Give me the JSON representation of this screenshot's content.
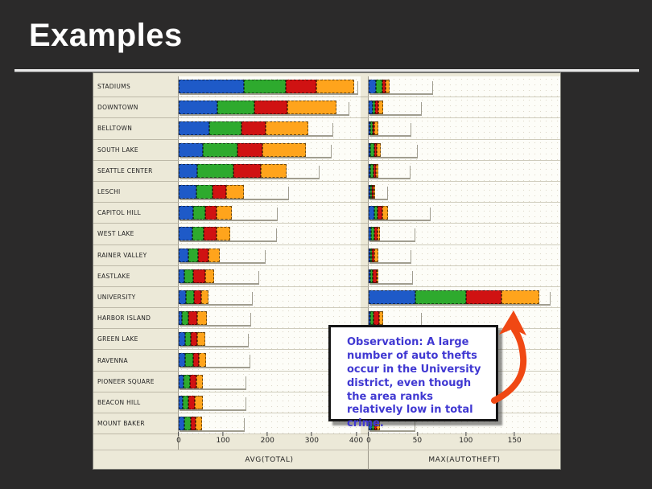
{
  "slide": {
    "title": "Examples"
  },
  "annotation": {
    "text": "Observation: A large number of auto thefts occur in the University district, even though the area ranks relatively low in total crime.",
    "text_color": "#4038d2",
    "arrow_color": "#f04813"
  },
  "colors": {
    "blue": "#1e5ac8",
    "green": "#2eaa2e",
    "red": "#d01212",
    "orange": "#ffa41c",
    "panel_bg": "#ece9d8",
    "slide_bg": "#2b2a2a"
  },
  "chart_data": [
    {
      "type": "bar",
      "orientation": "horizontal",
      "stacked": true,
      "xlabel": "AVG(TOTAL)",
      "xticks": [
        0,
        100,
        200,
        300,
        400
      ],
      "xlim": [
        0,
        410
      ],
      "grid": false,
      "legend": "none",
      "categories": [
        "STADIUMS",
        "DOWNTOWN",
        "BELLTOWN",
        "SOUTH LAKE",
        "SEATTLE CENTER",
        "LESCHI",
        "CAPITOL HILL",
        "WEST LAKE",
        "RAINER VALLEY",
        "EASTLAKE",
        "UNIVERSITY",
        "HARBOR ISLAND",
        "GREEN LAKE",
        "RAVENNA",
        "PIONEER SQUARE",
        "BEACON HILL",
        "MOUNT BAKER"
      ],
      "series": [
        {
          "name": "blue",
          "color": "#1e5ac8",
          "values": [
            150,
            93,
            81,
            66,
            54,
            66,
            60,
            57,
            45,
            29,
            42,
            20,
            39,
            39,
            29,
            27,
            33
          ]
        },
        {
          "name": "green",
          "color": "#2eaa2e",
          "values": [
            95,
            90,
            87,
            93,
            105,
            60,
            51,
            48,
            45,
            46,
            45,
            37,
            33,
            45,
            40,
            33,
            42
          ]
        },
        {
          "name": "red",
          "color": "#d01212",
          "values": [
            70,
            79,
            64,
            66,
            81,
            54,
            48,
            54,
            51,
            60,
            39,
            48,
            39,
            33,
            42,
            39,
            33
          ]
        },
        {
          "name": "orange",
          "color": "#ffa41c",
          "values": [
            88,
            120,
            114,
            118,
            76,
            66,
            63,
            60,
            54,
            45,
            39,
            57,
            45,
            42,
            39,
            51,
            39
          ]
        }
      ]
    },
    {
      "type": "bar",
      "orientation": "horizontal",
      "stacked": true,
      "xlabel": "MAX(AUTOTHEFT)",
      "xticks": [
        0,
        50,
        100,
        150
      ],
      "xlim": [
        0,
        197
      ],
      "grid": false,
      "legend": "none",
      "categories": [
        "STADIUMS",
        "DOWNTOWN",
        "BELLTOWN",
        "SOUTH LAKE",
        "SEATTLE CENTER",
        "LESCHI",
        "CAPITOL HILL",
        "WEST LAKE",
        "RAINER VALLEY",
        "EASTLAKE",
        "UNIVERSITY",
        "HARBOR ISLAND",
        "GREEN LAKE",
        "RAVENNA",
        "PIONEER SQUARE",
        "BEACON HILL",
        "MOUNT BAKER"
      ],
      "series": [
        {
          "name": "blue",
          "color": "#1e5ac8",
          "values": [
            22,
            14,
            6,
            6,
            4,
            3,
            17,
            10,
            6,
            8,
            51,
            7,
            8,
            8,
            7,
            6,
            14
          ]
        },
        {
          "name": "green",
          "color": "#2eaa2e",
          "values": [
            21,
            10,
            12,
            16,
            14,
            4,
            11,
            14,
            8,
            9,
            55,
            11,
            10,
            10,
            9,
            9,
            11
          ]
        },
        {
          "name": "red",
          "color": "#d01212",
          "values": [
            10,
            11,
            6,
            11,
            13,
            2,
            17,
            15,
            12,
            19,
            39,
            22,
            12,
            11,
            11,
            10,
            10
          ]
        },
        {
          "name": "orange",
          "color": "#ffa41c",
          "values": [
            12,
            19,
            19,
            17,
            11,
            10,
            18,
            8,
            17,
            9,
            41,
            14,
            12,
            13,
            12,
            12,
            12
          ]
        }
      ]
    }
  ]
}
